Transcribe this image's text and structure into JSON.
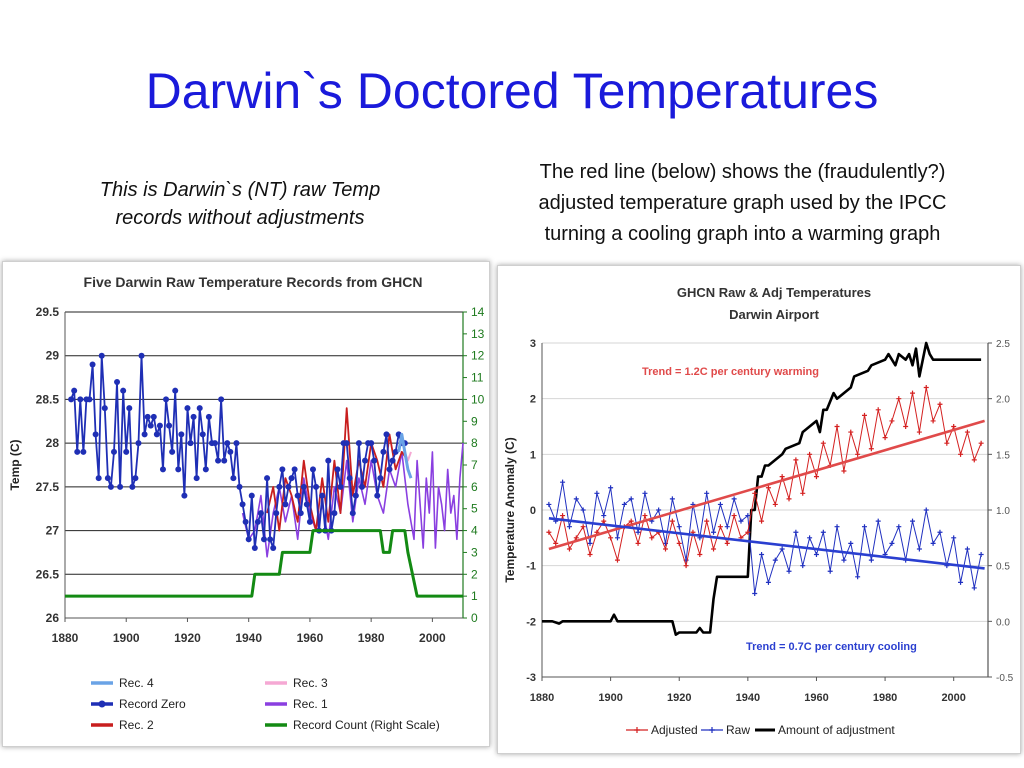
{
  "slide": {
    "title": "Darwin`s Doctored Temperatures",
    "caption_left": [
      "This is Darwin`s (NT) raw Temp",
      "records without adjustments"
    ],
    "caption_right": [
      "The red line (below) shows the (fraudulently?)",
      "adjusted temperature graph used by the IPCC",
      "turning a cooling graph into a warming graph"
    ]
  },
  "chart_data": [
    {
      "type": "line",
      "title": "Five Darwin Raw Temperature Records from GHCN",
      "ylabel": "Temp (C)",
      "xlim": [
        1880,
        2010
      ],
      "ylim": [
        26,
        29.5
      ],
      "y2lim": [
        0,
        14
      ],
      "x_ticks": [
        "1880",
        "1900",
        "1920",
        "1940",
        "1960",
        "1980",
        "2000"
      ],
      "y_ticks": [
        "26",
        "26.5",
        "27",
        "27.5",
        "28",
        "28.5",
        "29",
        "29.5"
      ],
      "y2_ticks": [
        "0",
        "1",
        "2",
        "3",
        "4",
        "5",
        "6",
        "7",
        "8",
        "9",
        "10",
        "11",
        "12",
        "13",
        "14"
      ],
      "grid": "horizontal",
      "legend_position": "bottom",
      "colors": {
        "rec4": "#6aa3e6",
        "record_zero": "#1f2fb5",
        "rec2": "#c81e1e",
        "rec3": "#f5a8d4",
        "rec1": "#8a3fe0",
        "count": "#138a13"
      },
      "series": [
        {
          "name": "Rec. 4",
          "x": [
            1989,
            1990,
            1991,
            1992,
            1993
          ],
          "values": [
            27.9,
            28.1,
            27.9,
            27.7,
            27.6
          ]
        },
        {
          "name": "Record Zero",
          "x": [
            1882,
            1883,
            1884,
            1885,
            1886,
            1887,
            1888,
            1889,
            1890,
            1891,
            1892,
            1893,
            1894,
            1895,
            1896,
            1897,
            1898,
            1899,
            1900,
            1901,
            1902,
            1903,
            1904,
            1905,
            1906,
            1907,
            1908,
            1909,
            1910,
            1911,
            1912,
            1913,
            1914,
            1915,
            1916,
            1917,
            1918,
            1919,
            1920,
            1921,
            1922,
            1923,
            1924,
            1925,
            1926,
            1927,
            1928,
            1929,
            1930,
            1931,
            1932,
            1933,
            1934,
            1935,
            1936,
            1937,
            1938,
            1939,
            1940,
            1941,
            1942,
            1943,
            1944,
            1945,
            1946,
            1947,
            1948,
            1949,
            1950,
            1951,
            1952,
            1953,
            1954,
            1955,
            1956,
            1957,
            1958,
            1959,
            1960,
            1961,
            1962,
            1963,
            1964,
            1965,
            1966,
            1967,
            1968,
            1969,
            1970,
            1971,
            1972,
            1973,
            1974,
            1975,
            1976,
            1977,
            1978,
            1979,
            1980,
            1981,
            1982,
            1983,
            1984,
            1985,
            1986,
            1987,
            1988,
            1989,
            1990,
            1991
          ],
          "values": [
            28.5,
            28.6,
            27.9,
            28.5,
            27.9,
            28.5,
            28.5,
            28.9,
            28.1,
            27.6,
            29.0,
            28.4,
            27.6,
            27.5,
            27.9,
            28.7,
            27.5,
            28.6,
            27.9,
            28.4,
            27.5,
            27.6,
            28.0,
            29.0,
            28.1,
            28.3,
            28.2,
            28.3,
            28.1,
            28.2,
            27.7,
            28.5,
            28.2,
            27.9,
            28.6,
            27.7,
            28.1,
            27.4,
            28.4,
            28.0,
            28.3,
            27.6,
            28.4,
            28.1,
            27.7,
            28.3,
            28.0,
            28.0,
            27.8,
            28.5,
            27.8,
            28.0,
            27.9,
            27.6,
            28.0,
            27.5,
            27.3,
            27.1,
            26.9,
            27.4,
            26.8,
            27.1,
            27.2,
            26.9,
            27.6,
            26.9,
            26.8,
            27.2,
            27.5,
            27.7,
            27.3,
            27.5,
            27.6,
            27.7,
            27.4,
            27.2,
            27.5,
            27.3,
            27.1,
            27.7,
            27.5,
            27.0,
            27.4,
            27.0,
            27.8,
            27.0,
            27.2,
            27.7,
            27.5,
            28.0,
            28.0,
            27.6,
            27.2,
            27.4,
            28.0,
            27.5,
            27.8,
            28.0,
            28.0,
            27.8,
            27.4,
            27.6,
            27.9,
            28.1,
            27.7,
            27.8,
            27.9,
            28.1,
            28.0,
            28.0
          ]
        },
        {
          "name": "Rec. 2",
          "x": [
            1946,
            1948,
            1950,
            1952,
            1954,
            1956,
            1958,
            1960,
            1962,
            1964,
            1966,
            1968,
            1970,
            1972,
            1974,
            1976,
            1978,
            1980,
            1982,
            1984,
            1986,
            1988,
            1990,
            1992
          ],
          "values": [
            27.2,
            27.5,
            27.0,
            27.6,
            27.4,
            27.1,
            27.8,
            27.3,
            27.0,
            27.6,
            27.1,
            27.8,
            27.2,
            28.4,
            27.4,
            27.8,
            27.5,
            28.0,
            27.8,
            27.5,
            28.1,
            27.7,
            27.9,
            27.8
          ]
        },
        {
          "name": "Rec. 3",
          "x": [
            1991,
            1992,
            1993
          ],
          "values": [
            27.9,
            27.8,
            27.9
          ]
        },
        {
          "name": "Rec. 1",
          "x": [
            1938,
            1940,
            1942,
            1944,
            1946,
            1948,
            1950,
            1952,
            1954,
            1956,
            1958,
            1960,
            1962,
            1964,
            1966,
            1968,
            1970,
            1972,
            1974,
            1976,
            1978,
            1980,
            1982,
            1984,
            1986,
            1988,
            1990,
            1992,
            1994,
            1995,
            1996,
            1997,
            1998,
            1999,
            2000,
            2001,
            2002,
            2003,
            2004,
            2005,
            2006,
            2007,
            2008,
            2009,
            2010
          ],
          "values": [
            27.2,
            26.9,
            27.0,
            27.4,
            26.7,
            27.2,
            27.5,
            27.1,
            27.4,
            26.9,
            27.6,
            27.2,
            27.0,
            27.3,
            26.9,
            27.5,
            27.2,
            27.8,
            27.1,
            27.6,
            27.3,
            27.8,
            27.4,
            27.2,
            27.7,
            27.5,
            27.9,
            27.3,
            26.9,
            27.8,
            27.3,
            26.8,
            27.6,
            27.2,
            27.9,
            26.8,
            27.5,
            27.3,
            27.0,
            27.7,
            27.2,
            27.4,
            26.9,
            27.6,
            28.0
          ]
        },
        {
          "name": "Record Count (Right Scale)",
          "axis": "right",
          "x": [
            1880,
            1941,
            1942,
            1943,
            1950,
            1951,
            1960,
            1961,
            1983,
            1984,
            1986,
            1987,
            1991,
            1992,
            1995,
            1996,
            2010
          ],
          "values": [
            1,
            1,
            2,
            2,
            2,
            3,
            3,
            4,
            4,
            3,
            3,
            4,
            4,
            3,
            1,
            1,
            1
          ]
        }
      ],
      "legend": [
        "Rec. 4",
        "Record Zero",
        "Rec. 2",
        "Rec. 3",
        "Rec. 1",
        "Record Count (Right Scale)"
      ]
    },
    {
      "type": "line",
      "title": "GHCN Raw & Adj Temperatures",
      "subtitle": "Darwin Airport",
      "ylabel": "Temperature Anomaly (C)",
      "xlim": [
        1880,
        2010
      ],
      "ylim": [
        -3,
        3
      ],
      "y2lim": [
        -0.5,
        2.5
      ],
      "x_ticks": [
        "1880",
        "1900",
        "1920",
        "1940",
        "1960",
        "1980",
        "2000"
      ],
      "y_ticks": [
        "-3",
        "-2",
        "-1",
        "0",
        "1",
        "2",
        "3"
      ],
      "y2_ticks": [
        "-0.5",
        "0.0",
        "0.5",
        "1.0",
        "1.5",
        "2.0",
        "2.5"
      ],
      "grid": "horizontal",
      "legend_position": "bottom",
      "annotations": [
        "Trend = 1.2C per century warming",
        "Trend = 0.7C per century cooling"
      ],
      "colors": {
        "adjusted": "#d42020",
        "raw": "#2030c0",
        "adjustment": "#000000",
        "trend_warm": "#e04a4a",
        "trend_cool": "#2a3fd0"
      },
      "series": [
        {
          "name": "Adjusted",
          "x": [
            1882,
            1884,
            1886,
            1888,
            1890,
            1892,
            1894,
            1896,
            1898,
            1900,
            1902,
            1904,
            1906,
            1908,
            1910,
            1912,
            1914,
            1916,
            1918,
            1920,
            1922,
            1924,
            1926,
            1928,
            1930,
            1932,
            1934,
            1936,
            1938,
            1940,
            1942,
            1944,
            1946,
            1948,
            1950,
            1952,
            1954,
            1956,
            1958,
            1960,
            1962,
            1964,
            1966,
            1968,
            1970,
            1972,
            1974,
            1976,
            1978,
            1980,
            1982,
            1984,
            1986,
            1988,
            1990,
            1992,
            1994,
            1996,
            1998,
            2000,
            2002,
            2004,
            2006,
            2008
          ],
          "values": [
            -0.4,
            -0.6,
            -0.1,
            -0.7,
            -0.5,
            -0.3,
            -0.8,
            -0.4,
            -0.2,
            -0.5,
            -0.9,
            -0.3,
            -0.2,
            -0.6,
            -0.1,
            -0.5,
            -0.4,
            -0.7,
            -0.2,
            -0.6,
            -1.0,
            -0.4,
            -0.8,
            -0.2,
            -0.7,
            -0.3,
            -0.6,
            -0.1,
            -0.5,
            -0.4,
            0.3,
            -0.2,
            0.4,
            0.1,
            0.6,
            0.2,
            0.9,
            0.3,
            1.0,
            0.6,
            1.2,
            0.8,
            1.5,
            0.7,
            1.4,
            1.0,
            1.7,
            1.1,
            1.8,
            1.3,
            1.6,
            2.0,
            1.5,
            2.1,
            1.4,
            2.2,
            1.6,
            1.9,
            1.2,
            1.5,
            1.0,
            1.4,
            0.9,
            1.2
          ]
        },
        {
          "name": "Raw",
          "x": [
            1882,
            1884,
            1886,
            1888,
            1890,
            1892,
            1894,
            1896,
            1898,
            1900,
            1902,
            1904,
            1906,
            1908,
            1910,
            1912,
            1914,
            1916,
            1918,
            1920,
            1922,
            1924,
            1926,
            1928,
            1930,
            1932,
            1934,
            1936,
            1938,
            1940,
            1942,
            1944,
            1946,
            1948,
            1950,
            1952,
            1954,
            1956,
            1958,
            1960,
            1962,
            1964,
            1966,
            1968,
            1970,
            1972,
            1974,
            1976,
            1978,
            1980,
            1982,
            1984,
            1986,
            1988,
            1990,
            1992,
            1994,
            1996,
            1998,
            2000,
            2002,
            2004,
            2006,
            2008
          ],
          "values": [
            0.1,
            -0.2,
            0.5,
            -0.3,
            0.2,
            0.0,
            -0.6,
            0.3,
            -0.1,
            0.4,
            -0.5,
            0.1,
            0.2,
            -0.4,
            0.3,
            -0.2,
            0.0,
            -0.6,
            0.2,
            -0.3,
            -0.9,
            0.1,
            -0.5,
            0.3,
            -0.4,
            0.1,
            -0.3,
            0.2,
            -0.2,
            -0.1,
            -1.5,
            -0.8,
            -1.3,
            -0.9,
            -0.7,
            -1.1,
            -0.4,
            -1.0,
            -0.5,
            -0.8,
            -0.4,
            -1.1,
            -0.3,
            -0.9,
            -0.6,
            -1.2,
            -0.3,
            -0.9,
            -0.2,
            -0.8,
            -0.6,
            -0.3,
            -0.9,
            -0.2,
            -0.7,
            0.0,
            -0.6,
            -0.4,
            -1.0,
            -0.5,
            -1.3,
            -0.7,
            -1.4,
            -0.8
          ]
        },
        {
          "name": "Amount of adjustment",
          "axis": "right",
          "x": [
            1880,
            1883,
            1885,
            1886,
            1900,
            1901,
            1902,
            1903,
            1918,
            1919,
            1920,
            1925,
            1926,
            1927,
            1928,
            1929,
            1930,
            1931,
            1939,
            1940,
            1941,
            1942,
            1943,
            1944,
            1945,
            1946,
            1950,
            1951,
            1955,
            1956,
            1960,
            1961,
            1962,
            1963,
            1965,
            1966,
            1970,
            1971,
            1975,
            1976,
            1980,
            1981,
            1983,
            1984,
            1986,
            1987,
            1988,
            1989,
            1990,
            1992,
            1993,
            1994,
            1995,
            2008
          ],
          "values": [
            0.0,
            0.0,
            -0.02,
            0.0,
            0.0,
            0.06,
            0.0,
            0.0,
            0.0,
            -0.12,
            -0.1,
            -0.1,
            -0.06,
            -0.1,
            -0.1,
            -0.1,
            0.2,
            0.4,
            0.4,
            0.4,
            1.0,
            1.0,
            1.3,
            1.3,
            1.4,
            1.4,
            1.5,
            1.55,
            1.6,
            1.7,
            1.8,
            1.7,
            1.9,
            1.9,
            2.05,
            2.0,
            2.1,
            2.2,
            2.25,
            2.3,
            2.35,
            2.4,
            2.3,
            2.4,
            2.35,
            2.4,
            2.3,
            2.45,
            2.2,
            2.5,
            2.4,
            2.35,
            2.35,
            2.35
          ]
        }
      ],
      "trend_lines": [
        {
          "name": "warming",
          "x": [
            1882,
            2009
          ],
          "values": [
            -0.7,
            1.6
          ]
        },
        {
          "name": "cooling",
          "x": [
            1882,
            2009
          ],
          "values": [
            -0.15,
            -1.05
          ]
        }
      ],
      "legend": [
        "Adjusted",
        "Raw",
        "Amount of adjustment"
      ]
    }
  ]
}
